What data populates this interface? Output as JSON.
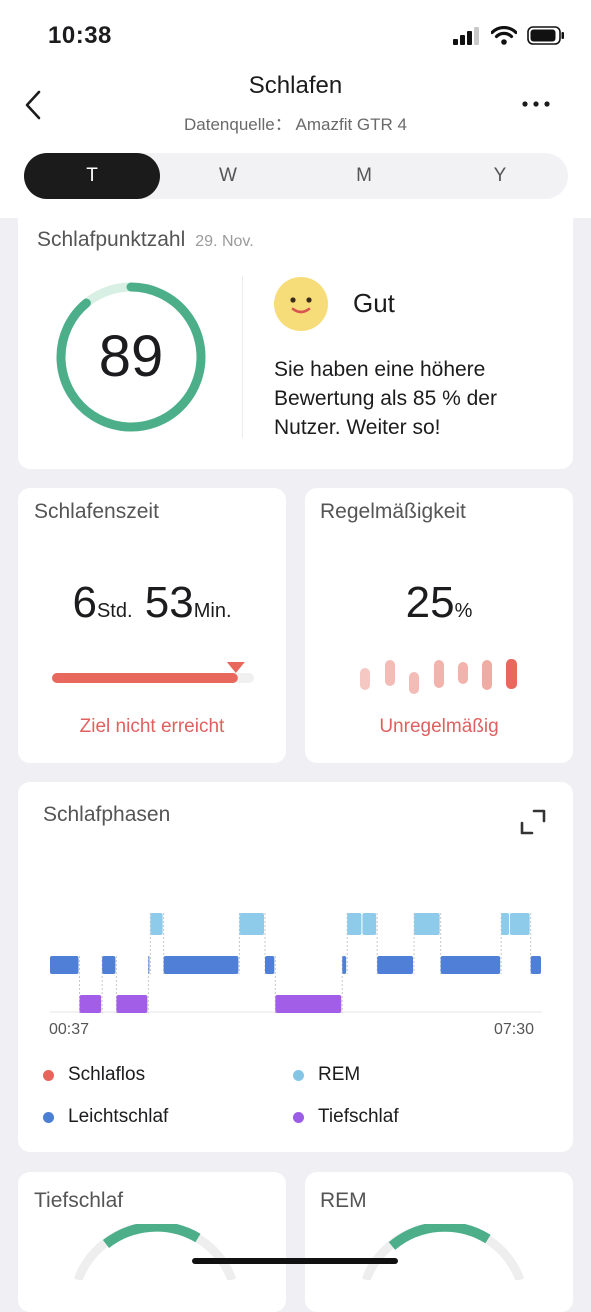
{
  "status": {
    "time": "10:38"
  },
  "header": {
    "title": "Schlafen",
    "subtitle": "Datenquelle： Amazfit GTR 4"
  },
  "tabs": [
    {
      "label": "T",
      "active": true
    },
    {
      "label": "W",
      "active": false
    },
    {
      "label": "M",
      "active": false
    },
    {
      "label": "Y",
      "active": false
    }
  ],
  "score_card": {
    "title": "Schlafpunktzahl",
    "date": "29. Nov.",
    "score": "89",
    "score_max": 100,
    "rating": "Gut",
    "description": "Sie haben eine höhere Bewertung als 85 % der Nutzer. Weiter so!",
    "accent_color": "#4caf8a"
  },
  "sleep_time_card": {
    "title": "Schlafenszeit",
    "hours": "6",
    "hours_unit": "Std.",
    "minutes": "53",
    "minutes_unit": "Min.",
    "goal_progress": 0.92,
    "status": "Ziel nicht erreicht"
  },
  "regularity_card": {
    "title": "Regelmäßigkeit",
    "value": "25",
    "unit": "%",
    "status": "Unregelmäßig"
  },
  "phases_card": {
    "title": "Schlafphasen",
    "start_time": "00:37",
    "end_time": "07:30",
    "legend": [
      {
        "label": "Schlaflos",
        "color": "#e8635a"
      },
      {
        "label": "REM",
        "color": "#84c5e6"
      },
      {
        "label": "Leichtschlaf",
        "color": "#4a7fd4"
      },
      {
        "label": "Tiefschlaf",
        "color": "#9b5ce6"
      }
    ],
    "stage_colors": {
      "rem": "#8ecbea",
      "light": "#4f7fd6",
      "deep": "#a35ee8"
    },
    "segments": [
      {
        "stage": "light",
        "start": 0.0,
        "end": 0.06
      },
      {
        "stage": "deep",
        "start": 0.06,
        "end": 0.106
      },
      {
        "stage": "light",
        "start": 0.106,
        "end": 0.135
      },
      {
        "stage": "deep",
        "start": 0.135,
        "end": 0.2
      },
      {
        "stage": "light",
        "start": 0.2,
        "end": 0.204
      },
      {
        "stage": "rem",
        "start": 0.204,
        "end": 0.231
      },
      {
        "stage": "light",
        "start": 0.231,
        "end": 0.385
      },
      {
        "stage": "rem",
        "start": 0.385,
        "end": 0.437
      },
      {
        "stage": "light",
        "start": 0.437,
        "end": 0.458
      },
      {
        "stage": "deep",
        "start": 0.458,
        "end": 0.594
      },
      {
        "stage": "light",
        "start": 0.594,
        "end": 0.604
      },
      {
        "stage": "rem",
        "start": 0.604,
        "end": 0.635
      },
      {
        "stage": "rem",
        "start": 0.635,
        "end": 0.665
      },
      {
        "stage": "light",
        "start": 0.665,
        "end": 0.74
      },
      {
        "stage": "rem",
        "start": 0.74,
        "end": 0.794
      },
      {
        "stage": "light",
        "start": 0.794,
        "end": 0.917
      },
      {
        "stage": "rem",
        "start": 0.917,
        "end": 0.935
      },
      {
        "stage": "rem",
        "start": 0.935,
        "end": 0.977
      },
      {
        "stage": "light",
        "start": 0.977,
        "end": 1.0
      }
    ]
  },
  "bottom_cards": [
    {
      "title": "Tiefschlaf"
    },
    {
      "title": "REM"
    }
  ]
}
